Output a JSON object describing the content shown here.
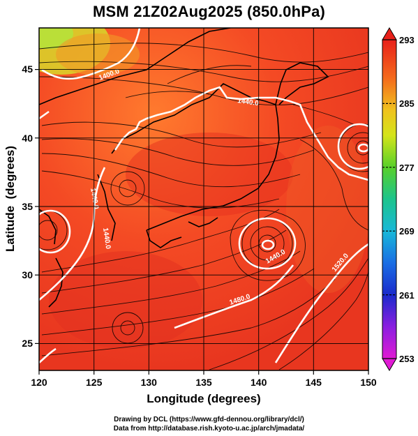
{
  "title": "MSM 21Z02Aug2025 (850.0hPa)",
  "chart_data": {
    "type": "heatmap",
    "title": "MSM 21Z02Aug2025 (850.0hPa)",
    "xlabel": "Longitude (degrees)",
    "ylabel": "Latitude  (degrees)",
    "xlim": [
      120,
      150
    ],
    "ylim": [
      22.6,
      47.6
    ],
    "x_ticks": [
      "120",
      "125",
      "130",
      "135",
      "140",
      "145",
      "150"
    ],
    "y_ticks": [
      "25",
      "30",
      "35",
      "40",
      "45"
    ],
    "grid": true,
    "colorbar": {
      "min": 253,
      "max": 293,
      "ticks": [
        "293",
        "285",
        "277",
        "269",
        "261",
        "253"
      ]
    },
    "contour_labels": [
      "1400.0",
      "1440.0",
      "1440.0",
      "1440.0",
      "1480.0",
      "1440.0",
      "1520.0"
    ]
  },
  "credits": {
    "line1": "Drawing by DCL (https://www.gfd-dennou.org/library/dcl/)",
    "line2": "Data from http://database.rish.kyoto-u.ac.jp/arch/jmadata/"
  }
}
